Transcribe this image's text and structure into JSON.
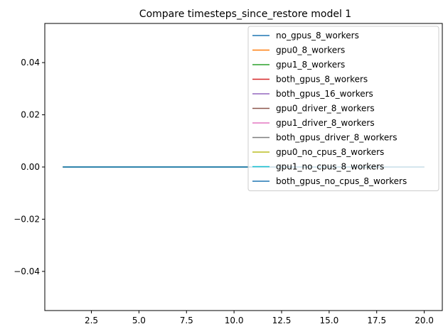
{
  "chart_data": {
    "type": "line",
    "title": "Compare timesteps_since_restore model 1",
    "xlabel": "",
    "ylabel": "",
    "xlim": [
      0.05,
      20.95
    ],
    "ylim": [
      -0.055,
      0.055
    ],
    "x_ticks": [
      2.5,
      5.0,
      7.5,
      10.0,
      12.5,
      15.0,
      17.5,
      20.0
    ],
    "x_tick_labels": [
      "2.5",
      "5.0",
      "7.5",
      "10.0",
      "12.5",
      "15.0",
      "17.5",
      "20.0"
    ],
    "y_ticks": [
      -0.04,
      -0.02,
      0.0,
      0.02,
      0.04
    ],
    "y_tick_labels": [
      "−0.04",
      "−0.02",
      "0.00",
      "0.02",
      "0.04"
    ],
    "grid": false,
    "legend_position": "top-right",
    "x": [
      1,
      2,
      3,
      4,
      5,
      6,
      7,
      8,
      9,
      10,
      11,
      12,
      13,
      14,
      15,
      16,
      17,
      18,
      19,
      20
    ],
    "series": [
      {
        "name": "no_gpus_8_workers",
        "color": "#1f77b4",
        "values": [
          0,
          0,
          0,
          0,
          0,
          0,
          0,
          0,
          0,
          0,
          0,
          0,
          0,
          0,
          0,
          0,
          0,
          0,
          0,
          0
        ]
      },
      {
        "name": "gpu0_8_workers",
        "color": "#ff7f0e",
        "values": [
          0,
          0,
          0,
          0,
          0,
          0,
          0,
          0,
          0,
          0,
          0,
          0,
          0,
          0,
          0,
          0,
          0,
          0,
          0,
          0
        ]
      },
      {
        "name": "gpu1_8_workers",
        "color": "#2ca02c",
        "values": [
          0,
          0,
          0,
          0,
          0,
          0,
          0,
          0,
          0,
          0,
          0,
          0,
          0,
          0,
          0,
          0,
          0,
          0,
          0,
          0
        ]
      },
      {
        "name": "both_gpus_8_workers",
        "color": "#d62728",
        "values": [
          0,
          0,
          0,
          0,
          0,
          0,
          0,
          0,
          0,
          0,
          0,
          0,
          0,
          0,
          0,
          0,
          0,
          0,
          0,
          0
        ]
      },
      {
        "name": "both_gpus_16_workers",
        "color": "#9467bd",
        "values": [
          0,
          0,
          0,
          0,
          0,
          0,
          0,
          0,
          0,
          0,
          0,
          0,
          0,
          0,
          0,
          0,
          0,
          0,
          0,
          0
        ]
      },
      {
        "name": "gpu0_driver_8_workers",
        "color": "#8c564b",
        "values": [
          0,
          0,
          0,
          0,
          0,
          0,
          0,
          0,
          0,
          0,
          0,
          0,
          0,
          0,
          0,
          0,
          0,
          0,
          0,
          0
        ]
      },
      {
        "name": "gpu1_driver_8_workers",
        "color": "#e377c2",
        "values": [
          0,
          0,
          0,
          0,
          0,
          0,
          0,
          0,
          0,
          0,
          0,
          0,
          0,
          0,
          0,
          0,
          0,
          0,
          0,
          0
        ]
      },
      {
        "name": "both_gpus_driver_8_workers",
        "color": "#7f7f7f",
        "values": [
          0,
          0,
          0,
          0,
          0,
          0,
          0,
          0,
          0,
          0,
          0,
          0,
          0,
          0,
          0,
          0,
          0,
          0,
          0,
          0
        ]
      },
      {
        "name": "gpu0_no_cpus_8_workers",
        "color": "#bcbd22",
        "values": [
          0,
          0,
          0,
          0,
          0,
          0,
          0,
          0,
          0,
          0,
          0,
          0,
          0,
          0,
          0,
          0,
          0,
          0,
          0,
          0
        ]
      },
      {
        "name": "gpu1_no_cpus_8_workers",
        "color": "#17becf",
        "values": [
          0,
          0,
          0,
          0,
          0,
          0,
          0,
          0,
          0,
          0,
          0,
          0,
          0,
          0,
          0,
          0,
          0,
          0,
          0,
          0
        ]
      },
      {
        "name": "both_gpus_no_cpus_8_workers",
        "color": "#1f77b4",
        "values": [
          0,
          0,
          0,
          0,
          0,
          0,
          0,
          0,
          0,
          0,
          0,
          0,
          0,
          0,
          0,
          0,
          0,
          0,
          0,
          0
        ]
      }
    ]
  }
}
